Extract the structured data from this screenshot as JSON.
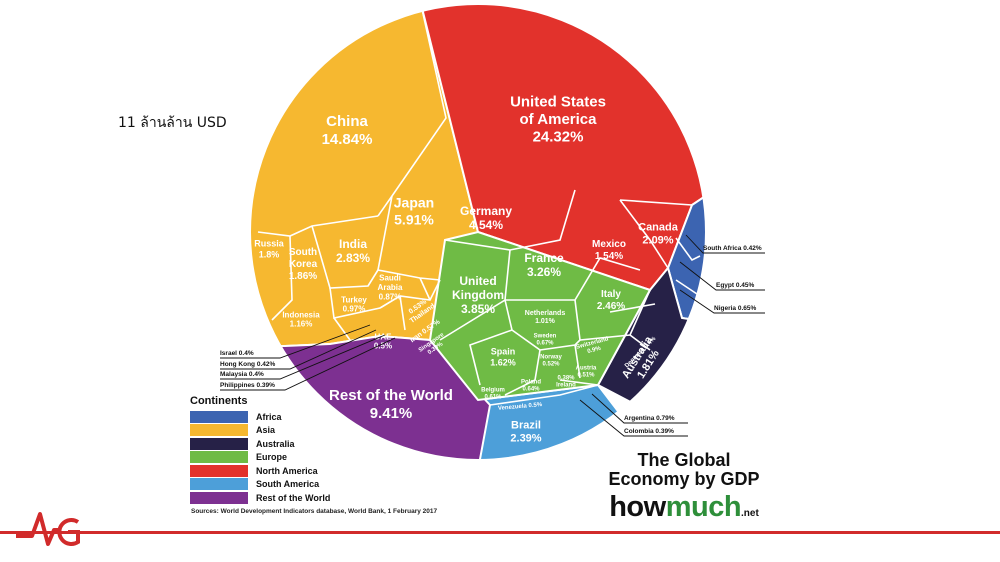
{
  "caption": "11 ล้านล้าน USD",
  "brand": {
    "title_line1": "The Global",
    "title_line2": "Economy by GDP",
    "logo_a": "how",
    "logo_b": "much",
    "logo_tld": ".net"
  },
  "source": "Sources: World Development Indicators database, World Bank, 1 February 2017",
  "legend": {
    "title": "Continents",
    "items": [
      {
        "label": "Africa",
        "color": "#3c64b1"
      },
      {
        "label": "Asia",
        "color": "#f6b830"
      },
      {
        "label": "Australia",
        "color": "#262147"
      },
      {
        "label": "Europe",
        "color": "#6fbb45"
      },
      {
        "label": "North America",
        "color": "#e2322c"
      },
      {
        "label": "South America",
        "color": "#4d9fd9"
      },
      {
        "label": "Rest of the World",
        "color": "#7d3091"
      }
    ]
  },
  "chart_data": {
    "type": "voronoi-treemap",
    "title": "The Global Economy by GDP",
    "unit": "% of world GDP",
    "cells": [
      {
        "name": "United States of America",
        "value": 24.32,
        "continent": "North America"
      },
      {
        "name": "Canada",
        "value": 2.09,
        "continent": "North America"
      },
      {
        "name": "Mexico",
        "value": 1.54,
        "continent": "North America"
      },
      {
        "name": "China",
        "value": 14.84,
        "continent": "Asia"
      },
      {
        "name": "Japan",
        "value": 5.91,
        "continent": "Asia"
      },
      {
        "name": "India",
        "value": 2.83,
        "continent": "Asia"
      },
      {
        "name": "South Korea",
        "value": 1.86,
        "continent": "Asia"
      },
      {
        "name": "Russia",
        "value": 1.8,
        "continent": "Asia"
      },
      {
        "name": "Indonesia",
        "value": 1.16,
        "continent": "Asia"
      },
      {
        "name": "Turkey",
        "value": 0.97,
        "continent": "Asia"
      },
      {
        "name": "Saudi Arabia",
        "value": 0.87,
        "continent": "Asia"
      },
      {
        "name": "Thailand",
        "value": 0.53,
        "continent": "Asia"
      },
      {
        "name": "Iran",
        "value": 0.57,
        "continent": "Asia"
      },
      {
        "name": "UAE",
        "value": 0.5,
        "continent": "Asia"
      },
      {
        "name": "Singapore",
        "value": 0.39,
        "continent": "Asia"
      },
      {
        "name": "Israel",
        "value": 0.4,
        "continent": "Asia"
      },
      {
        "name": "Hong Kong",
        "value": 0.42,
        "continent": "Asia"
      },
      {
        "name": "Malaysia",
        "value": 0.4,
        "continent": "Asia"
      },
      {
        "name": "Philippines",
        "value": 0.39,
        "continent": "Asia"
      },
      {
        "name": "Germany",
        "value": 4.54,
        "continent": "Europe"
      },
      {
        "name": "France",
        "value": 3.26,
        "continent": "Europe"
      },
      {
        "name": "United Kingdom",
        "value": 3.85,
        "continent": "Europe"
      },
      {
        "name": "Italy",
        "value": 2.46,
        "continent": "Europe"
      },
      {
        "name": "Spain",
        "value": 1.62,
        "continent": "Europe"
      },
      {
        "name": "Netherlands",
        "value": 1.01,
        "continent": "Europe"
      },
      {
        "name": "Switzerland",
        "value": 0.9,
        "continent": "Europe"
      },
      {
        "name": "Sweden",
        "value": 0.67,
        "continent": "Europe"
      },
      {
        "name": "Norway",
        "value": 0.52,
        "continent": "Europe"
      },
      {
        "name": "Poland",
        "value": 0.64,
        "continent": "Europe"
      },
      {
        "name": "Belgium",
        "value": 0.61,
        "continent": "Europe"
      },
      {
        "name": "Austria",
        "value": 0.51,
        "continent": "Europe"
      },
      {
        "name": "Ireland",
        "value": 0.38,
        "continent": "Europe"
      },
      {
        "name": "Denmark",
        "value": 0.4,
        "continent": "Europe"
      },
      {
        "name": "Australia",
        "value": 1.81,
        "continent": "Australia"
      },
      {
        "name": "Brazil",
        "value": 2.39,
        "continent": "South America"
      },
      {
        "name": "Venezuela",
        "value": 0.5,
        "continent": "South America"
      },
      {
        "name": "Argentina",
        "value": 0.79,
        "continent": "South America"
      },
      {
        "name": "Colombia",
        "value": 0.39,
        "continent": "South America"
      },
      {
        "name": "South Africa",
        "value": 0.42,
        "continent": "Africa"
      },
      {
        "name": "Egypt",
        "value": 0.45,
        "continent": "Africa"
      },
      {
        "name": "Nigeria",
        "value": 0.65,
        "continent": "Africa"
      },
      {
        "name": "Rest of the World",
        "value": 9.41,
        "continent": "Rest of the World"
      }
    ],
    "labels": {
      "usa": [
        "United States",
        "of America",
        "24.32%"
      ],
      "china": [
        "China",
        "14.84%"
      ],
      "japan": [
        "Japan",
        "5.91%"
      ],
      "india": [
        "India",
        "2.83%"
      ],
      "korea": [
        "South",
        "Korea",
        "1.86%"
      ],
      "russia": [
        "Russia",
        "1.8%"
      ],
      "indonesia": [
        "Indonesia",
        "1.16%"
      ],
      "turkey": [
        "Turkey",
        "0.97%"
      ],
      "saudi": [
        "Saudi",
        "Arabia",
        "0.87%"
      ],
      "thailand": [
        "0.53%",
        "Thailand"
      ],
      "iran": [
        "Iran 0.57%"
      ],
      "uae": [
        "UAE",
        "0.5%"
      ],
      "singapore": [
        "Singapore",
        "0.39%"
      ],
      "germany": [
        "Germany",
        "4.54%"
      ],
      "france": [
        "France",
        "3.26%"
      ],
      "uk": [
        "United",
        "Kingdom",
        "3.85%"
      ],
      "italy": [
        "Italy",
        "2.46%"
      ],
      "spain": [
        "Spain",
        "1.62%"
      ],
      "netherlands": [
        "Netherlands",
        "1.01%"
      ],
      "switzerland": [
        "Switzerland",
        "0.9%"
      ],
      "sweden": [
        "Sweden",
        "0.67%"
      ],
      "norway": [
        "Norway",
        "0.52%"
      ],
      "poland": [
        "Poland",
        "0.64%"
      ],
      "belgium": [
        "Belgium",
        "0.61%"
      ],
      "austria": [
        "Austria",
        "0.51%"
      ],
      "ireland": [
        "0.38%",
        "Ireland"
      ],
      "denmark": [
        "Denmark 0.4%"
      ],
      "canada": [
        "Canada",
        "2.09%"
      ],
      "mexico": [
        "Mexico",
        "1.54%"
      ],
      "australia": [
        "Australia",
        "1.81%"
      ],
      "brazil": [
        "Brazil",
        "2.39%"
      ],
      "venezuela": [
        "Venezuela 0.5%"
      ],
      "row": [
        "Rest of the World",
        "9.41%"
      ]
    },
    "callouts": {
      "southafrica": "South Africa 0.42%",
      "egypt": "Egypt 0.45%",
      "nigeria": "Nigeria 0.65%",
      "argentina": "Argentina 0.79%",
      "colombia": "Colombia 0.39%",
      "israel": "Israel 0.4%",
      "hongkong": "Hong Kong 0.42%",
      "malaysia": "Malaysia 0.4%",
      "philippines": "Philippines 0.39%"
    }
  }
}
